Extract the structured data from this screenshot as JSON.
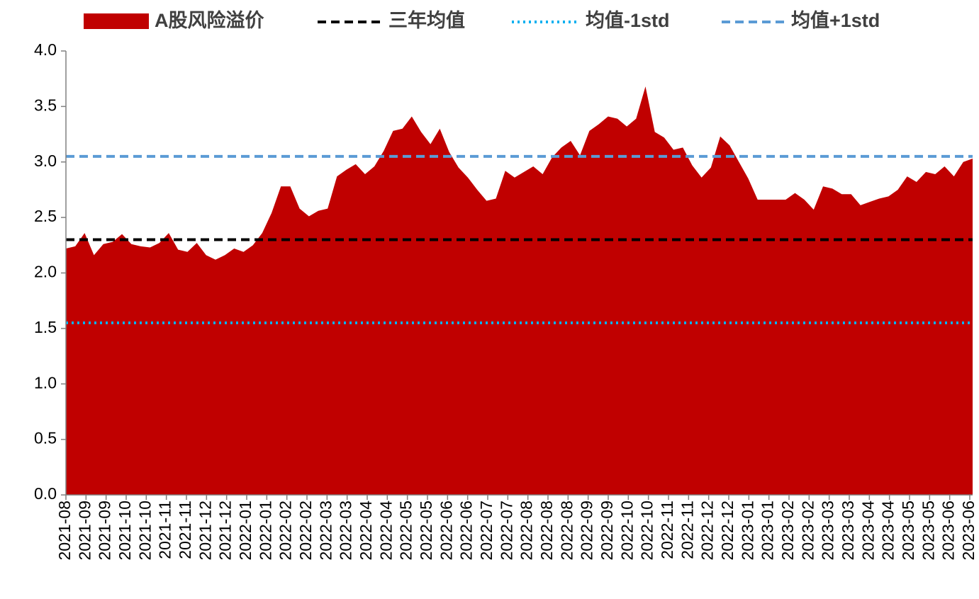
{
  "chart_data": {
    "type": "area",
    "series": [
      {
        "name": "A股风险溢价",
        "color": "#c00000",
        "values": [
          2.22,
          2.24,
          2.36,
          2.16,
          2.26,
          2.28,
          2.35,
          2.26,
          2.24,
          2.23,
          2.27,
          2.36,
          2.21,
          2.19,
          2.27,
          2.16,
          2.12,
          2.16,
          2.22,
          2.19,
          2.25,
          2.36,
          2.54,
          2.78,
          2.78,
          2.58,
          2.51,
          2.56,
          2.58,
          2.87,
          2.93,
          2.98,
          2.89,
          2.96,
          3.1,
          3.28,
          3.3,
          3.41,
          3.27,
          3.16,
          3.3,
          3.09,
          2.95,
          2.86,
          2.75,
          2.65,
          2.67,
          2.92,
          2.86,
          2.91,
          2.96,
          2.89,
          3.04,
          3.13,
          3.19,
          3.06,
          3.28,
          3.34,
          3.41,
          3.39,
          3.32,
          3.39,
          3.68,
          3.27,
          3.22,
          3.11,
          3.13,
          2.97,
          2.86,
          2.95,
          3.23,
          3.15,
          3.0,
          2.85,
          2.66,
          2.66,
          2.66,
          2.66,
          2.72,
          2.66,
          2.57,
          2.78,
          2.76,
          2.71,
          2.71,
          2.61,
          2.64,
          2.67,
          2.69,
          2.75,
          2.87,
          2.82,
          2.91,
          2.89,
          2.96,
          2.87,
          3.0,
          3.03
        ]
      }
    ],
    "reference_lines": [
      {
        "name": "三年均值",
        "color": "#000000",
        "value": 2.3,
        "style": "dashed"
      },
      {
        "name": "均值-1std",
        "color": "#00b0f0",
        "value": 1.55,
        "style": "dotted"
      },
      {
        "name": "均值+1std",
        "color": "#5b9bd5",
        "value": 3.05,
        "style": "dashed"
      }
    ],
    "x_labels": [
      "2021-08",
      "2021-09",
      "2021-09",
      "2021-10",
      "2021-10",
      "2021-11",
      "2021-11",
      "2021-12",
      "2021-12",
      "2022-01",
      "2022-01",
      "2022-02",
      "2022-02",
      "2022-03",
      "2022-03",
      "2022-04",
      "2022-04",
      "2022-05",
      "2022-05",
      "2022-06",
      "2022-06",
      "2022-07",
      "2022-07",
      "2022-08",
      "2022-08",
      "2022-08",
      "2022-09",
      "2022-09",
      "2022-10",
      "2022-10",
      "2022-11",
      "2022-11",
      "2022-12",
      "2022-12",
      "2023-01",
      "2023-01",
      "2023-02",
      "2023-02",
      "2023-03",
      "2023-03",
      "2023-04",
      "2023-04",
      "2023-05",
      "2023-05",
      "2023-06",
      "2023-06"
    ],
    "ylim": [
      0,
      4
    ],
    "yticks": [
      {
        "value": 0,
        "label": "0.0"
      },
      0.5,
      {
        "value": 1,
        "label": "1.0"
      },
      1.5,
      {
        "value": 2,
        "label": "2.0"
      },
      2.5,
      {
        "value": 3,
        "label": "3.0"
      },
      3.5,
      {
        "value": 4,
        "label": "4.0"
      }
    ]
  }
}
